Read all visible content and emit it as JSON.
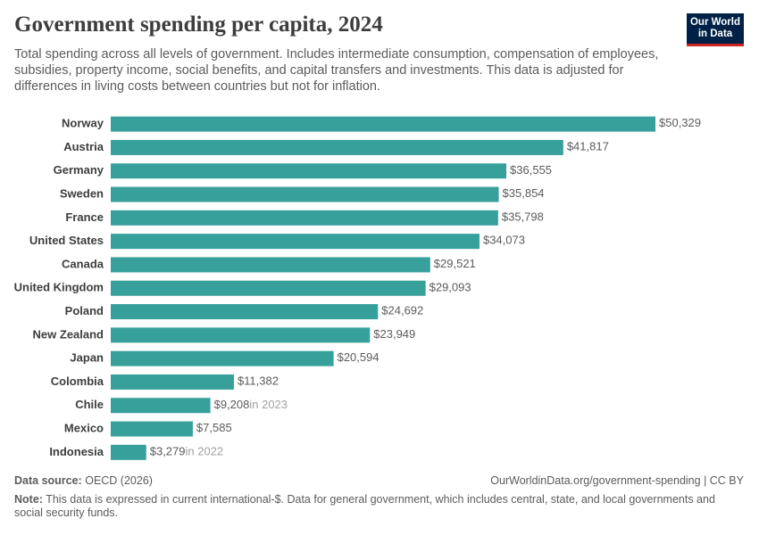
{
  "chart_data": {
    "type": "bar",
    "orientation": "horizontal",
    "title": "Government spending per capita, 2024",
    "subtitle": "Total spending across all levels of government. Includes intermediate consumption, compensation of employees, subsidies, property income, social benefits, and capital transfers and investments. This data is adjusted for differences in living costs between countries but not for inflation.",
    "logo": [
      "Our World",
      "in Data"
    ],
    "categories": [
      "Norway",
      "Austria",
      "Germany",
      "Sweden",
      "France",
      "United States",
      "Canada",
      "United Kingdom",
      "Poland",
      "New Zealand",
      "Japan",
      "Colombia",
      "Chile",
      "Mexico",
      "Indonesia"
    ],
    "values": [
      50329,
      41817,
      36555,
      35854,
      35798,
      34073,
      29521,
      29093,
      24692,
      23949,
      20594,
      11382,
      9208,
      7585,
      3279
    ],
    "value_labels": [
      "$50,329",
      "$41,817",
      "$36,555",
      "$35,854",
      "$35,798",
      "$34,073",
      "$29,521",
      "$29,093",
      "$24,692",
      "$23,949",
      "$20,594",
      "$11,382",
      "$9,208",
      "$7,585",
      "$3,279"
    ],
    "value_notes": [
      null,
      null,
      null,
      null,
      null,
      null,
      null,
      null,
      null,
      null,
      null,
      null,
      "in 2023",
      null,
      "in 2022"
    ],
    "color": "#38a09a",
    "source_label": "Data source:",
    "source": "OECD (2026)",
    "url": "OurWorldinData.org/government-spending | CC BY",
    "note_label": "Note:",
    "note": "This data is expressed in current international-$. Data for general government, which includes central, state, and local governments and social security funds."
  }
}
